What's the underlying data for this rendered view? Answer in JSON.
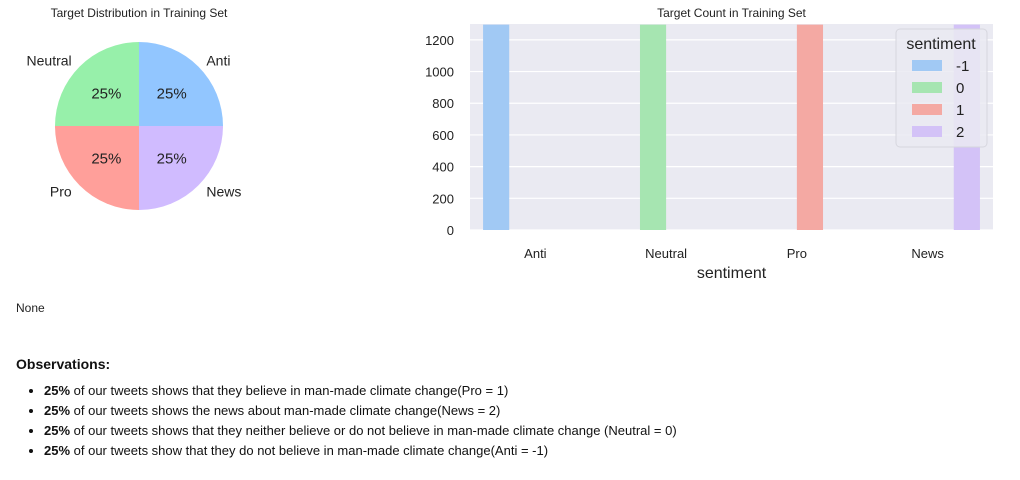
{
  "chart_data": [
    {
      "type": "pie",
      "title": "Target Distribution in Training Set",
      "categories": [
        "Anti",
        "News",
        "Pro",
        "Neutral"
      ],
      "values": [
        25,
        25,
        25,
        25
      ],
      "value_labels": [
        "25%",
        "25%",
        "25%",
        "25%"
      ],
      "colors": [
        "#92c6ff",
        "#d0bbff",
        "#ff9f9a",
        "#97f0aa"
      ]
    },
    {
      "type": "bar",
      "title": "Target Count in Training Set",
      "categories": [
        "Anti",
        "Neutral",
        "Pro",
        "News"
      ],
      "xlabel": "sentiment",
      "ylabel": "",
      "ylim": [
        0,
        1300
      ],
      "yticks": [
        0,
        200,
        400,
        600,
        800,
        1000,
        1200
      ],
      "grid": true,
      "legend": {
        "title": "sentiment",
        "placement": "top-right"
      },
      "series": [
        {
          "name": "-1",
          "color": "#a1c9f4",
          "values": [
            1296,
            null,
            null,
            null
          ]
        },
        {
          "name": "0",
          "color": "#a6e5b1",
          "values": [
            null,
            1296,
            null,
            null
          ]
        },
        {
          "name": "1",
          "color": "#f4a9a3",
          "values": [
            null,
            null,
            1296,
            null
          ]
        },
        {
          "name": "2",
          "color": "#d3c2f7",
          "values": [
            null,
            null,
            null,
            1296
          ]
        }
      ]
    }
  ],
  "output": {
    "none_text": "None"
  },
  "observations": {
    "title": "Observations:",
    "items": [
      {
        "pct": "25%",
        "text": " of our tweets shows that they believe in man-made climate change(Pro = 1)"
      },
      {
        "pct": "25%",
        "text": " of our tweets shows the news about man-made climate change(News = 2)"
      },
      {
        "pct": "25%",
        "text": " of our tweets shows that they neither believe or do not believe in man-made climate change (Neutral = 0)"
      },
      {
        "pct": "25%",
        "text": " of our tweets show that they do not believe in man-made climate change(Anti = -1)"
      }
    ]
  }
}
